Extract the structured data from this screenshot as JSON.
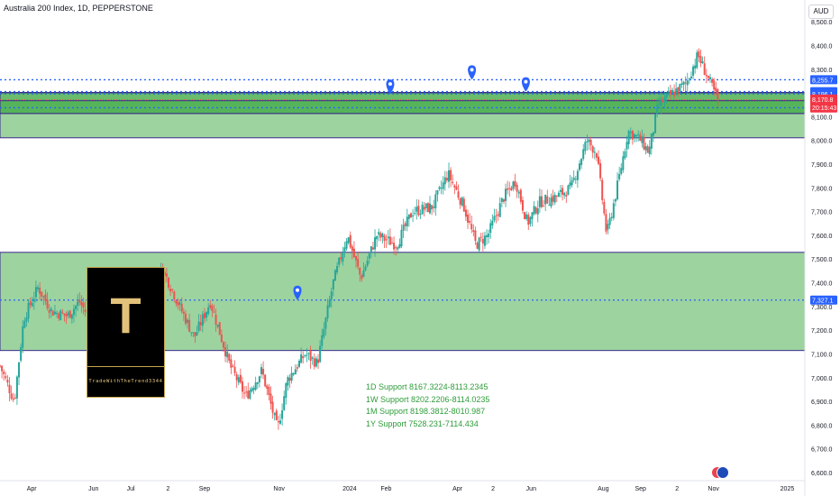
{
  "header": {
    "title": "Australia 200 Index, 1D, PEPPERSTONE",
    "currency": "AUD"
  },
  "logo": {
    "letter": "T",
    "caption": "TradeWithTheTrend3344"
  },
  "support_notes": [
    "1D Support 8167.3224-8113.2345",
    "1W Support 8202.2206-8114.0235",
    "1M Support 8198.3812-8010.987",
    "1Y Support 7528.231-7114.434"
  ],
  "colors": {
    "up": "#26a69a",
    "down": "#ef5350",
    "zone_fill": "#4caf50",
    "zone_border": "#3a2a8c",
    "level_line": "#2962ff",
    "price_red": "#f23645"
  },
  "chart_data": {
    "type": "candlestick",
    "ylim": [
      6600,
      8550
    ],
    "y_ticks": [
      6600,
      6700,
      6800,
      6900,
      7000,
      7100,
      7200,
      7300,
      7400,
      7500,
      7600,
      7700,
      7800,
      7900,
      8000,
      8100,
      8200,
      8300,
      8400,
      8500
    ],
    "y_tick_labels": [
      "6,600.0",
      "6,700.0",
      "6,800.0",
      "6,900.0",
      "7,000.0",
      "7,100.0",
      "7,200.0",
      "7,300.0",
      "7,400.0",
      "7,500.0",
      "7,600.0",
      "7,700.0",
      "7,800.0",
      "7,900.0",
      "8,000.0",
      "8,100.0",
      "8,200.0",
      "8,300.0",
      "8,400.0",
      "8,500.0"
    ],
    "x_labels": [
      {
        "t": 0.04,
        "label": "Apr"
      },
      {
        "t": 0.118,
        "label": "Jun"
      },
      {
        "t": 0.165,
        "label": "Jul"
      },
      {
        "t": 0.212,
        "label": "2"
      },
      {
        "t": 0.258,
        "label": "Sep"
      },
      {
        "t": 0.352,
        "label": "Nov"
      },
      {
        "t": 0.441,
        "label": "2024"
      },
      {
        "t": 0.487,
        "label": "Feb"
      },
      {
        "t": 0.577,
        "label": "Apr"
      },
      {
        "t": 0.622,
        "label": "2"
      },
      {
        "t": 0.67,
        "label": "Jun"
      },
      {
        "t": 0.761,
        "label": "Aug"
      },
      {
        "t": 0.808,
        "label": "Sep"
      },
      {
        "t": 0.854,
        "label": "2"
      },
      {
        "t": 0.9,
        "label": "Nov"
      },
      {
        "t": 0.993,
        "label": "2025"
      }
    ],
    "zones": [
      {
        "name": "1Y Support",
        "from": 7114.434,
        "to": 7528.231
      },
      {
        "name": "1M Support",
        "from": 8010.987,
        "to": 8198.3812
      },
      {
        "name": "1W Support",
        "from": 8114.0235,
        "to": 8202.2206
      },
      {
        "name": "1D Support",
        "from": 8113.2345,
        "to": 8167.3224
      }
    ],
    "levels": [
      {
        "value": 8255.7,
        "label": "8,255.7",
        "color": "#2962ff"
      },
      {
        "value": 8205.7,
        "label": "8,205.7",
        "color": "#2962ff"
      },
      {
        "value": 8196.1,
        "label": "8,196.1",
        "color": "#2962ff"
      },
      {
        "value": 8137.9,
        "label": "8,137.9",
        "color": "#2962ff"
      },
      {
        "value": 7327.1,
        "label": "7,327.1",
        "color": "#2962ff"
      }
    ],
    "last_price": {
      "value": 8170.8,
      "label": "8,170.8",
      "countdown": "20:15:43"
    },
    "alert_markers": [
      {
        "t": 0.375,
        "price": 7327.1
      },
      {
        "t": 0.492,
        "price": 8196.1
      },
      {
        "t": 0.595,
        "price": 8255.7
      },
      {
        "t": 0.663,
        "price": 8205.7
      }
    ],
    "path": [
      {
        "t": 0.0,
        "p": 7050
      },
      {
        "t": 0.018,
        "p": 6900
      },
      {
        "t": 0.03,
        "p": 7250
      },
      {
        "t": 0.048,
        "p": 7380
      },
      {
        "t": 0.065,
        "p": 7280
      },
      {
        "t": 0.085,
        "p": 7260
      },
      {
        "t": 0.1,
        "p": 7320
      },
      {
        "t": 0.13,
        "p": 7160
      },
      {
        "t": 0.16,
        "p": 7350
      },
      {
        "t": 0.185,
        "p": 7330
      },
      {
        "t": 0.205,
        "p": 7460
      },
      {
        "t": 0.225,
        "p": 7310
      },
      {
        "t": 0.245,
        "p": 7170
      },
      {
        "t": 0.265,
        "p": 7320
      },
      {
        "t": 0.29,
        "p": 7050
      },
      {
        "t": 0.31,
        "p": 6920
      },
      {
        "t": 0.33,
        "p": 7030
      },
      {
        "t": 0.35,
        "p": 6780
      },
      {
        "t": 0.362,
        "p": 6990
      },
      {
        "t": 0.385,
        "p": 7100
      },
      {
        "t": 0.4,
        "p": 7060
      },
      {
        "t": 0.42,
        "p": 7400
      },
      {
        "t": 0.438,
        "p": 7600
      },
      {
        "t": 0.455,
        "p": 7420
      },
      {
        "t": 0.475,
        "p": 7600
      },
      {
        "t": 0.5,
        "p": 7560
      },
      {
        "t": 0.52,
        "p": 7700
      },
      {
        "t": 0.545,
        "p": 7720
      },
      {
        "t": 0.565,
        "p": 7860
      },
      {
        "t": 0.585,
        "p": 7720
      },
      {
        "t": 0.6,
        "p": 7560
      },
      {
        "t": 0.615,
        "p": 7600
      },
      {
        "t": 0.635,
        "p": 7760
      },
      {
        "t": 0.65,
        "p": 7830
      },
      {
        "t": 0.665,
        "p": 7650
      },
      {
        "t": 0.68,
        "p": 7740
      },
      {
        "t": 0.7,
        "p": 7760
      },
      {
        "t": 0.72,
        "p": 7800
      },
      {
        "t": 0.74,
        "p": 8000
      },
      {
        "t": 0.752,
        "p": 7950
      },
      {
        "t": 0.765,
        "p": 7600
      },
      {
        "t": 0.778,
        "p": 7800
      },
      {
        "t": 0.792,
        "p": 8040
      },
      {
        "t": 0.808,
        "p": 8000
      },
      {
        "t": 0.818,
        "p": 7950
      },
      {
        "t": 0.83,
        "p": 8150
      },
      {
        "t": 0.848,
        "p": 8200
      },
      {
        "t": 0.865,
        "p": 8240
      },
      {
        "t": 0.88,
        "p": 8360
      },
      {
        "t": 0.893,
        "p": 8260
      },
      {
        "t": 0.905,
        "p": 8170
      }
    ]
  }
}
